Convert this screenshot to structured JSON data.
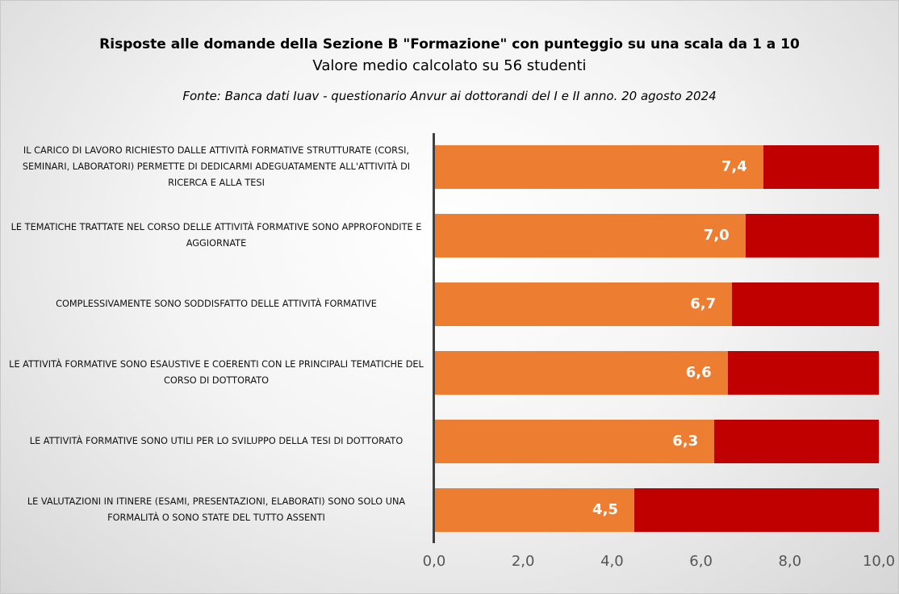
{
  "chart_data": {
    "type": "stacked_bar_horizontal",
    "title": "Risposte alle domande della Sezione B \"Formazione\" con punteggio su una scala da 1 a 10",
    "subtitle": "Valore medio calcolato su 56 studenti",
    "source": "Fonte: Banca dati Iuav - questionario Anvur ai dottorandi del I e II anno. 20 agosto 2024",
    "categories": [
      "IL CARICO DI LAVORO RICHIESTO DALLE ATTIVITÀ FORMATIVE STRUTTURATE (CORSI, SEMINARI, LABORATORI) PERMETTE DI DEDICARMI ADEGUATAMENTE ALL'ATTIVITÀ DI RICERCA E ALLA TESI",
      "LE TEMATICHE TRATTATE NEL CORSO DELLE ATTIVITÀ FORMATIVE SONO APPROFONDITE E AGGIORNATE",
      "COMPLESSIVAMENTE SONO SODDISFATTO DELLE ATTIVITÀ FORMATIVE",
      "LE ATTIVITÀ FORMATIVE SONO ESAUSTIVE E COERENTI CON LE PRINCIPALI TEMATICHE DEL CORSO DI DOTTORATO",
      "LE ATTIVITÀ FORMATIVE SONO UTILI PER LO SVILUPPO DELLA TESI DI DOTTORATO",
      "LE VALUTAZIONI IN ITINERE (ESAMI, PRESENTAZIONI, ELABORATI) SONO SOLO UNA FORMALITÀ O SONO STATE DEL TUTTO ASSENTI"
    ],
    "series": [
      {
        "color": "#ed7d31",
        "values": [
          7.4,
          7.0,
          6.7,
          6.6,
          6.3,
          4.5
        ],
        "value_labels": [
          "7,4",
          "7,0",
          "6,7",
          "6,6",
          "6,3",
          "4,5"
        ]
      },
      {
        "color": "#c00000",
        "values": [
          2.6,
          3.0,
          3.3,
          3.4,
          3.7,
          5.5
        ]
      }
    ],
    "xlim": [
      0,
      10
    ],
    "xticks": [
      {
        "value": 0,
        "label": "0,0"
      },
      {
        "value": 2,
        "label": "2,0"
      },
      {
        "value": 4,
        "label": "4,0"
      },
      {
        "value": 6,
        "label": "6,0"
      },
      {
        "value": 8,
        "label": "8,0"
      },
      {
        "value": 10,
        "label": "10,0"
      }
    ]
  }
}
